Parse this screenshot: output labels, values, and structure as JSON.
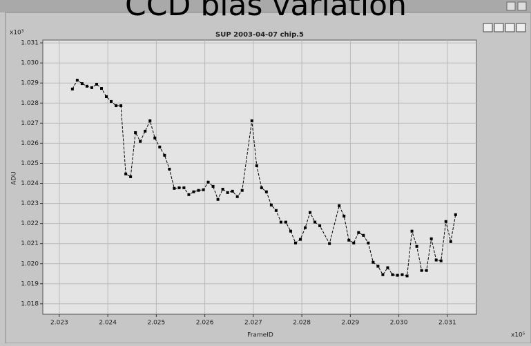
{
  "chart_data": {
    "type": "line",
    "title": "CCD bias variation",
    "subtitle": "SUP 2003-04-07  chip.5",
    "x_label": "FrameID",
    "y_label": "ADU",
    "x_multiplier": "x10⁵",
    "y_multiplier": "x10³",
    "x": [
      2.02327,
      2.02337,
      2.02347,
      2.02357,
      2.02367,
      2.02377,
      2.02387,
      2.02397,
      2.02407,
      2.02417,
      2.02427,
      2.02437,
      2.02447,
      2.02457,
      2.02467,
      2.02477,
      2.02487,
      2.02497,
      2.02507,
      2.02517,
      2.02527,
      2.02537,
      2.02547,
      2.02557,
      2.02567,
      2.02577,
      2.02587,
      2.02597,
      2.02607,
      2.02617,
      2.02627,
      2.02637,
      2.02647,
      2.02657,
      2.02667,
      2.02677,
      2.02697,
      2.02707,
      2.02717,
      2.02727,
      2.02737,
      2.02747,
      2.02757,
      2.02767,
      2.02777,
      2.02787,
      2.02797,
      2.02807,
      2.02817,
      2.02827,
      2.02837,
      2.02857,
      2.02877,
      2.02887,
      2.02897,
      2.02907,
      2.02917,
      2.02927,
      2.02937,
      2.02947,
      2.02957,
      2.02967,
      2.02977,
      2.02987,
      2.02997,
      2.03007,
      2.03017,
      2.03027,
      2.03037,
      2.03047,
      2.03057,
      2.03067,
      2.03077,
      2.03087,
      2.03097,
      2.03107,
      2.03117
    ],
    "series": [
      {
        "color": "#000000",
        "values": [
          1.0287,
          1.02914,
          1.02897,
          1.02884,
          1.02877,
          1.02894,
          1.02873,
          1.02832,
          1.02808,
          1.02787,
          1.02787,
          1.02447,
          1.02433,
          1.02653,
          1.02609,
          1.0266,
          1.02712,
          1.02626,
          1.02581,
          1.0254,
          1.02471,
          1.02375,
          1.02378,
          1.02378,
          1.02344,
          1.02358,
          1.02365,
          1.02368,
          1.02406,
          1.02385,
          1.0232,
          1.02371,
          1.02354,
          1.02361,
          1.02334,
          1.02365,
          1.02712,
          1.02488,
          1.02378,
          1.02358,
          1.02292,
          1.02265,
          1.02207,
          1.02207,
          1.02162,
          1.02103,
          1.02121,
          1.02179,
          1.02255,
          1.02207,
          1.02189,
          1.021,
          1.02289,
          1.02237,
          1.02117,
          1.02103,
          1.02155,
          1.02141,
          1.02103,
          1.02007,
          1.01987,
          1.01945,
          1.0198,
          1.01945,
          1.01942,
          1.01945,
          1.01939,
          1.02162,
          1.02086,
          1.01966,
          1.01966,
          1.02124,
          1.02018,
          1.02014,
          1.0221,
          1.0211,
          1.02244
        ]
      }
    ],
    "xlim": [
      2.02266,
      2.0316
    ],
    "ylim": [
      1.01748,
      1.03114
    ],
    "xticks": [
      {
        "value": 2.023,
        "label": "2.023"
      },
      {
        "value": 2.024,
        "label": "2.024"
      },
      {
        "value": 2.025,
        "label": "2.025"
      },
      {
        "value": 2.026,
        "label": "2.026"
      },
      {
        "value": 2.027,
        "label": "2.027"
      },
      {
        "value": 2.028,
        "label": "2.028"
      },
      {
        "value": 2.029,
        "label": "2.029"
      },
      {
        "value": 2.03,
        "label": "2.030"
      },
      {
        "value": 2.031,
        "label": "2.031"
      }
    ],
    "yticks": [
      1.031,
      {
        "value": 1.03,
        "label": "1.030"
      },
      1.029,
      1.028,
      1.027,
      1.026,
      1.025,
      1.024,
      1.023,
      1.022,
      1.021,
      {
        "value": 1.02,
        "label": "1.020"
      },
      1.019,
      1.018
    ],
    "grid": true
  }
}
